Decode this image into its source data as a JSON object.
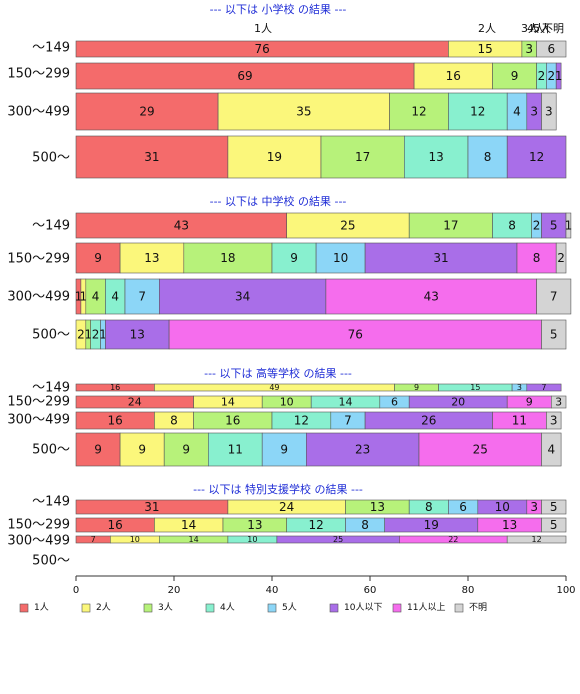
{
  "chart_data": {
    "type": "bar",
    "orientation": "horizontal",
    "stacked": true,
    "xlim": [
      0,
      100
    ],
    "xticks": [
      "0",
      "20",
      "40",
      "60",
      "80",
      "100"
    ],
    "series_names": [
      "1人",
      "2人",
      "3人",
      "4人",
      "5人",
      "10人以下",
      "11人以上",
      "不明"
    ],
    "colors": [
      "#f46b6b",
      "#fbf77b",
      "#b7f27a",
      "#88f0cf",
      "#8cd6f7",
      "#a96ee8",
      "#f56ded",
      "#d4d4d4"
    ],
    "top_labels": [
      "1人",
      "2人",
      "3人",
      "4人",
      "5人",
      "不明"
    ],
    "panels": [
      {
        "title": "--- 以下は 小学校 の結果 ---",
        "rows": [
          {
            "category": "〜149",
            "values": [
              76,
              15,
              3,
              0,
              0,
              0,
              0,
              6
            ]
          },
          {
            "category": "150〜299",
            "values": [
              69,
              16,
              9,
              2,
              2,
              1,
              0,
              0
            ]
          },
          {
            "category": "300〜499",
            "values": [
              29,
              35,
              12,
              12,
              4,
              3,
              0,
              3
            ]
          },
          {
            "category": "500〜",
            "values": [
              31,
              19,
              17,
              13,
              8,
              12,
              0,
              0
            ]
          }
        ]
      },
      {
        "title": "--- 以下は 中学校 の結果 ---",
        "rows": [
          {
            "category": "〜149",
            "values": [
              43,
              25,
              17,
              8,
              2,
              5,
              0,
              1
            ]
          },
          {
            "category": "150〜299",
            "values": [
              9,
              13,
              18,
              9,
              10,
              31,
              8,
              2
            ]
          },
          {
            "category": "300〜499",
            "values": [
              1,
              1,
              4,
              4,
              7,
              34,
              43,
              7
            ]
          },
          {
            "category": "500〜",
            "values": [
              0,
              2,
              1,
              2,
              1,
              13,
              76,
              5
            ]
          }
        ]
      },
      {
        "title": "--- 以下は 高等学校 の結果 ---",
        "rows": [
          {
            "category": "〜149",
            "values": [
              16,
              49,
              9,
              15,
              3,
              7,
              0,
              0
            ]
          },
          {
            "category": "150〜299",
            "values": [
              24,
              14,
              10,
              14,
              6,
              20,
              9,
              3
            ]
          },
          {
            "category": "300〜499",
            "values": [
              16,
              8,
              16,
              12,
              7,
              26,
              11,
              3
            ]
          },
          {
            "category": "500〜",
            "values": [
              9,
              9,
              9,
              11,
              9,
              23,
              25,
              4
            ]
          }
        ]
      },
      {
        "title": "--- 以下は 特別支援学校 の結果 ---",
        "rows": [
          {
            "category": "〜149",
            "values": [
              31,
              24,
              13,
              8,
              6,
              10,
              3,
              5
            ]
          },
          {
            "category": "150〜299",
            "values": [
              16,
              14,
              13,
              12,
              8,
              19,
              13,
              5
            ]
          },
          {
            "category": "300〜499",
            "values": [
              7,
              10,
              14,
              10,
              0,
              25,
              22,
              12
            ]
          },
          {
            "category": "500〜",
            "values": []
          }
        ]
      }
    ]
  }
}
